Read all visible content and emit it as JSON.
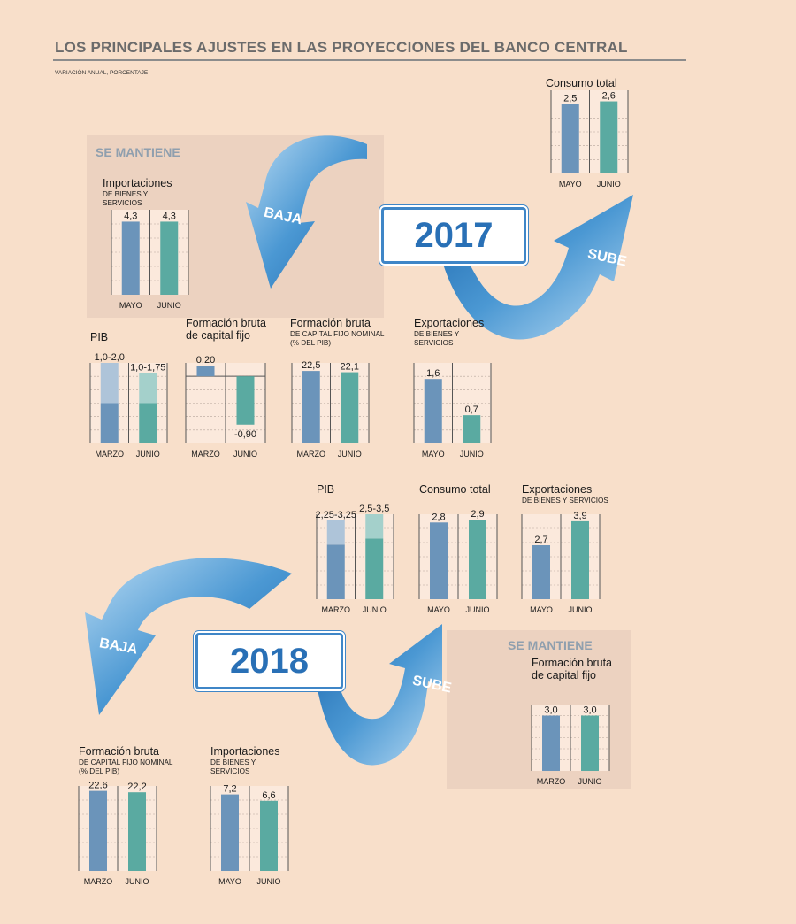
{
  "header": {
    "title": "LOS PRINCIPALES AJUSTES EN LAS PROYECCIONES DEL BANCO CENTRAL",
    "subtitle": "VARIACIÓN ANUAL, PORCENTAJE"
  },
  "colors": {
    "first": "#6b94ba",
    "second": "#5aaaa1",
    "arrow": "#4a95d1",
    "box_border": "#3f86c7"
  },
  "y2017": {
    "year": "2017",
    "se_mantiene": "SE MANTIENE",
    "baja": "BAJA",
    "sube": "SUBE"
  },
  "y2018": {
    "year": "2018",
    "se_mantiene": "SE MANTIENE",
    "baja": "BAJA",
    "sube": "SUBE"
  },
  "chart_data": [
    {
      "id": "c2017_imp",
      "type": "bar",
      "title": "Importaciones",
      "subtitle": [
        "DE BIENES Y",
        "SERVICIOS"
      ],
      "categories": [
        "MAYO",
        "JUNIO"
      ],
      "values": [
        4.3,
        4.3
      ],
      "labels": [
        "4,3",
        "4,3"
      ]
    },
    {
      "id": "c2017_cons",
      "type": "bar",
      "title": "Consumo total",
      "subtitle": [],
      "categories": [
        "MAYO",
        "JUNIO"
      ],
      "values": [
        2.5,
        2.6
      ],
      "labels": [
        "2,5",
        "2,6"
      ]
    },
    {
      "id": "c2017_pib",
      "type": "bar",
      "title": "PIB",
      "subtitle": [],
      "categories": [
        "MARZO",
        "JUNIO"
      ],
      "ranges": [
        [
          1.0,
          2.0
        ],
        [
          1.0,
          1.75
        ]
      ],
      "labels": [
        "1,0-2,0",
        "1,0-1,75"
      ]
    },
    {
      "id": "c2017_fbcf",
      "type": "bar",
      "title": "Formación bruta",
      "title2": "de capital fijo",
      "subtitle": [],
      "categories": [
        "MARZO",
        "JUNIO"
      ],
      "values": [
        0.2,
        -0.9
      ],
      "labels": [
        "0,20",
        "-0,90"
      ]
    },
    {
      "id": "c2017_fbcfn",
      "type": "bar",
      "title": "Formación bruta",
      "subtitle": [
        "DE CAPITAL FIJO NOMINAL",
        "(% DEL PIB)"
      ],
      "categories": [
        "MARZO",
        "JUNIO"
      ],
      "values": [
        22.5,
        22.1
      ],
      "labels": [
        "22,5",
        "22,1"
      ]
    },
    {
      "id": "c2017_exp",
      "type": "bar",
      "title": "Exportaciones",
      "subtitle": [
        "DE BIENES Y",
        "SERVICIOS"
      ],
      "categories": [
        "MAYO",
        "JUNIO"
      ],
      "values": [
        1.6,
        0.7
      ],
      "labels": [
        "1,6",
        "0,7"
      ]
    },
    {
      "id": "c2018_pib",
      "type": "bar",
      "title": "PIB",
      "subtitle": [],
      "categories": [
        "MARZO",
        "JUNIO"
      ],
      "ranges": [
        [
          2.25,
          3.25
        ],
        [
          2.5,
          3.5
        ]
      ],
      "labels": [
        "2,25-3,25",
        "2,5-3,5"
      ]
    },
    {
      "id": "c2018_cons",
      "type": "bar",
      "title": "Consumo total",
      "subtitle": [],
      "categories": [
        "MAYO",
        "JUNIO"
      ],
      "values": [
        2.8,
        2.9
      ],
      "labels": [
        "2,8",
        "2,9"
      ]
    },
    {
      "id": "c2018_exp",
      "type": "bar",
      "title": "Exportaciones",
      "subtitle": [
        "DE BIENES Y SERVICIOS"
      ],
      "categories": [
        "MAYO",
        "JUNIO"
      ],
      "values": [
        2.7,
        3.9
      ],
      "labels": [
        "2,7",
        "3,9"
      ]
    },
    {
      "id": "c2018_fbcf",
      "type": "bar",
      "title": "Formación bruta",
      "title2": "de capital fijo",
      "subtitle": [],
      "categories": [
        "MARZO",
        "JUNIO"
      ],
      "values": [
        3.0,
        3.0
      ],
      "labels": [
        "3,0",
        "3,0"
      ]
    },
    {
      "id": "c2018_fbcfn",
      "type": "bar",
      "title": "Formación bruta",
      "subtitle": [
        "DE CAPITAL FIJO NOMINAL",
        "(% DEL PIB)"
      ],
      "categories": [
        "MARZO",
        "JUNIO"
      ],
      "values": [
        22.6,
        22.2
      ],
      "labels": [
        "22,6",
        "22,2"
      ]
    },
    {
      "id": "c2018_imp",
      "type": "bar",
      "title": "Importaciones",
      "subtitle": [
        "DE BIENES Y",
        "SERVICIOS"
      ],
      "categories": [
        "MAYO",
        "JUNIO"
      ],
      "values": [
        7.2,
        6.6
      ],
      "labels": [
        "7,2",
        "6,6"
      ]
    }
  ]
}
